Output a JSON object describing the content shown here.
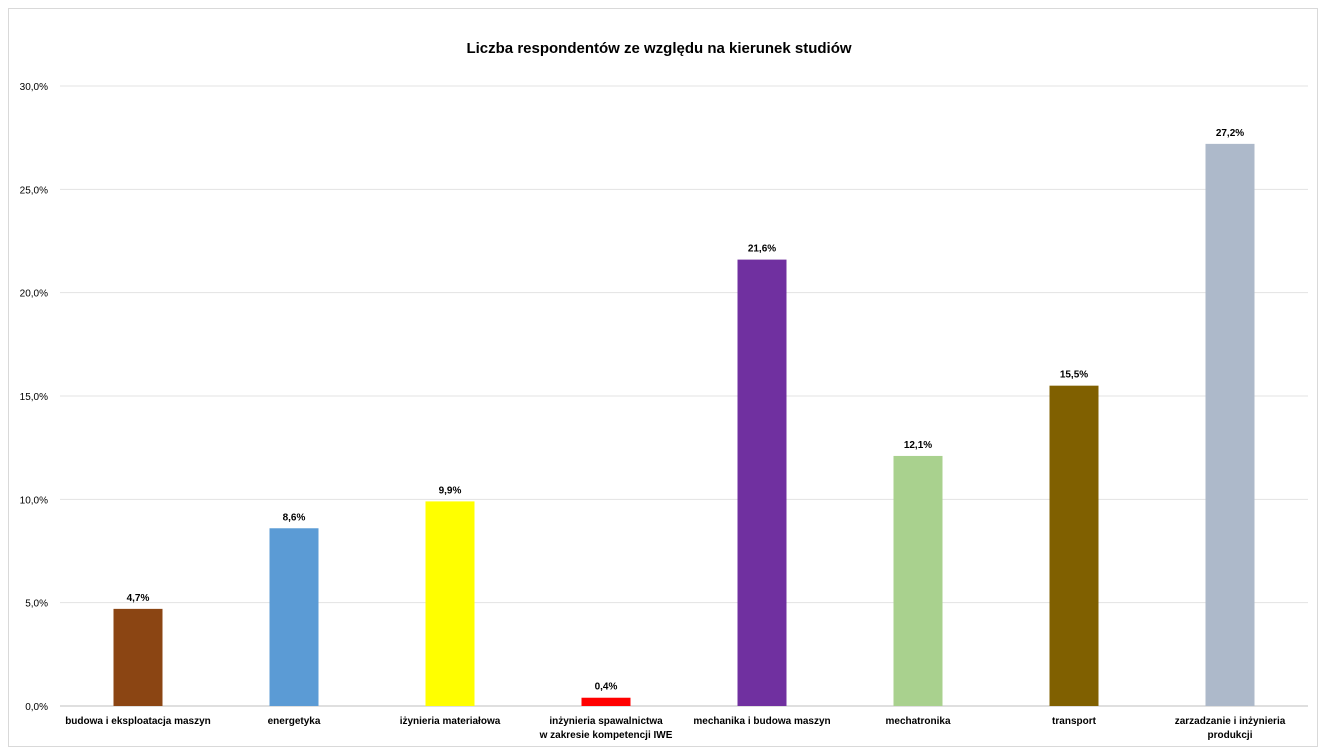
{
  "chart_data": {
    "type": "bar",
    "title": "Liczba respondentów ze względu na kierunek studiów",
    "xlabel": "",
    "ylabel": "",
    "ylim": [
      0,
      30
    ],
    "y_ticks": [
      "0,0%",
      "5,0%",
      "10,0%",
      "15,0%",
      "20,0%",
      "25,0%",
      "30,0%"
    ],
    "grid": true,
    "legend": "none",
    "categories": [
      [
        "budowa i eksploatacja maszyn"
      ],
      [
        "energetyka"
      ],
      [
        "iżynieria materiałowa"
      ],
      [
        "inżynieria spawalnictwa",
        "w zakresie kompetencji IWE"
      ],
      [
        "mechanika i budowa maszyn"
      ],
      [
        "mechatronika"
      ],
      [
        "transport"
      ],
      [
        "zarzadzanie i inżynieria",
        "produkcji"
      ]
    ],
    "values": [
      4.7,
      8.6,
      9.9,
      0.4,
      21.6,
      12.1,
      15.5,
      27.2
    ],
    "data_labels": [
      "4,7%",
      "8,6%",
      "9,9%",
      "0,4%",
      "21,6%",
      "12,1%",
      "15,5%",
      "27,2%"
    ],
    "colors": [
      "#8B4513",
      "#5B9BD5",
      "#FFFF00",
      "#FF0000",
      "#7030A0",
      "#A9D18E",
      "#806000",
      "#ADB9CA"
    ]
  }
}
